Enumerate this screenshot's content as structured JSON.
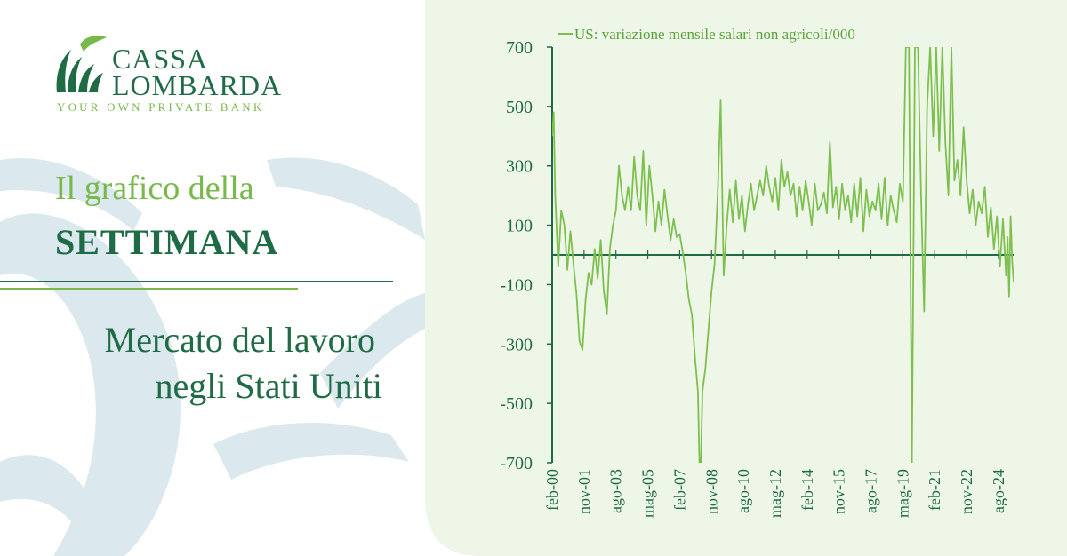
{
  "brand": {
    "name_line1": "CASSA",
    "name_line2": "LOMBARDA",
    "tagline": "YOUR OWN PRIVATE BANK"
  },
  "headline": {
    "line1": "Il grafico della",
    "line2": "SETTIMANA"
  },
  "subtitle": {
    "line1": "Mercato del lavoro",
    "line2": "negli Stati Uniti"
  },
  "colors": {
    "dark_green": "#1f6b45",
    "light_green": "#79b84b",
    "series": "#7dc050",
    "panel_bg": "#eef6e8",
    "decor_blue": "#dbe9ee"
  },
  "chart_data": {
    "type": "line",
    "title": "",
    "xlabel": "",
    "ylabel": "",
    "ylim": [
      -700,
      700
    ],
    "yticks": [
      700,
      500,
      300,
      100,
      -100,
      -300,
      -500,
      -700
    ],
    "ytick_labels": [
      "700",
      "500",
      "300",
      "100",
      "-100",
      "-300",
      "-500",
      "-700"
    ],
    "xtick_labels": [
      "feb-00",
      "nov-01",
      "ago-03",
      "mag-05",
      "feb-07",
      "nov-08",
      "ago-10",
      "mag-12",
      "feb-14",
      "nov-15",
      "ago-17",
      "mag-19",
      "feb-21",
      "nov-22",
      "ago-24"
    ],
    "xtick_months": [
      0,
      21,
      42,
      63,
      84,
      105,
      126,
      147,
      168,
      189,
      210,
      231,
      252,
      273,
      294
    ],
    "x_start": "feb-00",
    "x_end": "mar-25",
    "legend_position": "top",
    "series": [
      {
        "name": "US: variazione mensile salari  non agricoli/000",
        "monthly_anchor_values": [
          {
            "month": 0,
            "value": 400
          },
          {
            "month": 1,
            "value": 480
          },
          {
            "month": 2,
            "value": 200
          },
          {
            "month": 4,
            "value": -40
          },
          {
            "month": 6,
            "value": 150
          },
          {
            "month": 8,
            "value": 100
          },
          {
            "month": 10,
            "value": -50
          },
          {
            "month": 12,
            "value": 80
          },
          {
            "month": 14,
            "value": -30
          },
          {
            "month": 16,
            "value": -130
          },
          {
            "month": 18,
            "value": -290
          },
          {
            "month": 20,
            "value": -320
          },
          {
            "month": 22,
            "value": -150
          },
          {
            "month": 24,
            "value": -60
          },
          {
            "month": 26,
            "value": -100
          },
          {
            "month": 28,
            "value": 20
          },
          {
            "month": 30,
            "value": -80
          },
          {
            "month": 32,
            "value": 50
          },
          {
            "month": 34,
            "value": -120
          },
          {
            "month": 36,
            "value": -200
          },
          {
            "month": 38,
            "value": 20
          },
          {
            "month": 40,
            "value": 100
          },
          {
            "month": 42,
            "value": 150
          },
          {
            "month": 44,
            "value": 300
          },
          {
            "month": 46,
            "value": 200
          },
          {
            "month": 48,
            "value": 150
          },
          {
            "month": 50,
            "value": 230
          },
          {
            "month": 52,
            "value": 150
          },
          {
            "month": 54,
            "value": 330
          },
          {
            "month": 56,
            "value": 200
          },
          {
            "month": 58,
            "value": 150
          },
          {
            "month": 60,
            "value": 350
          },
          {
            "month": 62,
            "value": 100
          },
          {
            "month": 64,
            "value": 300
          },
          {
            "month": 66,
            "value": 200
          },
          {
            "month": 68,
            "value": 80
          },
          {
            "month": 70,
            "value": 180
          },
          {
            "month": 72,
            "value": 100
          },
          {
            "month": 74,
            "value": 220
          },
          {
            "month": 76,
            "value": 130
          },
          {
            "month": 78,
            "value": 50
          },
          {
            "month": 80,
            "value": 120
          },
          {
            "month": 82,
            "value": 60
          },
          {
            "month": 84,
            "value": 70
          },
          {
            "month": 86,
            "value": 10
          },
          {
            "month": 88,
            "value": -60
          },
          {
            "month": 90,
            "value": -150
          },
          {
            "month": 92,
            "value": -200
          },
          {
            "month": 94,
            "value": -340
          },
          {
            "month": 96,
            "value": -460
          },
          {
            "month": 97,
            "value": -700
          },
          {
            "month": 98,
            "value": -700
          },
          {
            "month": 99,
            "value": -460
          },
          {
            "month": 101,
            "value": -380
          },
          {
            "month": 103,
            "value": -250
          },
          {
            "month": 105,
            "value": -120
          },
          {
            "month": 107,
            "value": -30
          },
          {
            "month": 109,
            "value": 200
          },
          {
            "month": 111,
            "value": 520
          },
          {
            "month": 113,
            "value": -70
          },
          {
            "month": 115,
            "value": 100
          },
          {
            "month": 117,
            "value": 220
          },
          {
            "month": 119,
            "value": 110
          },
          {
            "month": 121,
            "value": 250
          },
          {
            "month": 123,
            "value": 120
          },
          {
            "month": 125,
            "value": 200
          },
          {
            "month": 127,
            "value": 80
          },
          {
            "month": 129,
            "value": 170
          },
          {
            "month": 131,
            "value": 240
          },
          {
            "month": 133,
            "value": 150
          },
          {
            "month": 135,
            "value": 200
          },
          {
            "month": 137,
            "value": 250
          },
          {
            "month": 139,
            "value": 200
          },
          {
            "month": 141,
            "value": 300
          },
          {
            "month": 143,
            "value": 230
          },
          {
            "month": 145,
            "value": 180
          },
          {
            "month": 147,
            "value": 260
          },
          {
            "month": 149,
            "value": 150
          },
          {
            "month": 151,
            "value": 320
          },
          {
            "month": 153,
            "value": 230
          },
          {
            "month": 155,
            "value": 280
          },
          {
            "month": 157,
            "value": 200
          },
          {
            "month": 159,
            "value": 240
          },
          {
            "month": 161,
            "value": 130
          },
          {
            "month": 163,
            "value": 230
          },
          {
            "month": 165,
            "value": 150
          },
          {
            "month": 167,
            "value": 250
          },
          {
            "month": 169,
            "value": 180
          },
          {
            "month": 171,
            "value": 100
          },
          {
            "month": 173,
            "value": 240
          },
          {
            "month": 175,
            "value": 150
          },
          {
            "month": 177,
            "value": 170
          },
          {
            "month": 179,
            "value": 210
          },
          {
            "month": 181,
            "value": 140
          },
          {
            "month": 183,
            "value": 380
          },
          {
            "month": 185,
            "value": 160
          },
          {
            "month": 187,
            "value": 230
          },
          {
            "month": 189,
            "value": 120
          },
          {
            "month": 191,
            "value": 240
          },
          {
            "month": 193,
            "value": 150
          },
          {
            "month": 195,
            "value": 200
          },
          {
            "month": 197,
            "value": 110
          },
          {
            "month": 199,
            "value": 240
          },
          {
            "month": 201,
            "value": 130
          },
          {
            "month": 203,
            "value": 260
          },
          {
            "month": 205,
            "value": 80
          },
          {
            "month": 207,
            "value": 220
          },
          {
            "month": 209,
            "value": 130
          },
          {
            "month": 211,
            "value": 180
          },
          {
            "month": 213,
            "value": 150
          },
          {
            "month": 215,
            "value": 240
          },
          {
            "month": 217,
            "value": 120
          },
          {
            "month": 219,
            "value": 260
          },
          {
            "month": 221,
            "value": 100
          },
          {
            "month": 223,
            "value": 200
          },
          {
            "month": 225,
            "value": 150
          },
          {
            "month": 227,
            "value": 110
          },
          {
            "month": 229,
            "value": 240
          },
          {
            "month": 231,
            "value": 180
          },
          {
            "month": 233,
            "value": 700
          },
          {
            "month": 235,
            "value": 700
          },
          {
            "month": 237,
            "value": -700
          },
          {
            "month": 239,
            "value": 700
          },
          {
            "month": 241,
            "value": 700
          },
          {
            "month": 243,
            "value": 200
          },
          {
            "month": 245,
            "value": -190
          },
          {
            "month": 247,
            "value": 500
          },
          {
            "month": 249,
            "value": 700
          },
          {
            "month": 251,
            "value": 400
          },
          {
            "month": 253,
            "value": 700
          },
          {
            "month": 255,
            "value": 350
          },
          {
            "month": 257,
            "value": 700
          },
          {
            "month": 259,
            "value": 380
          },
          {
            "month": 261,
            "value": 200
          },
          {
            "month": 263,
            "value": 700
          },
          {
            "month": 265,
            "value": 250
          },
          {
            "month": 267,
            "value": 320
          },
          {
            "month": 269,
            "value": 200
          },
          {
            "month": 271,
            "value": 430
          },
          {
            "month": 273,
            "value": 250
          },
          {
            "month": 275,
            "value": 140
          },
          {
            "month": 277,
            "value": 220
          },
          {
            "month": 279,
            "value": 100
          },
          {
            "month": 281,
            "value": 180
          },
          {
            "month": 283,
            "value": 140
          },
          {
            "month": 285,
            "value": 230
          },
          {
            "month": 287,
            "value": 60
          },
          {
            "month": 289,
            "value": 160
          },
          {
            "month": 291,
            "value": 20
          },
          {
            "month": 293,
            "value": 130
          },
          {
            "month": 295,
            "value": -40
          },
          {
            "month": 297,
            "value": 120
          },
          {
            "month": 299,
            "value": -70
          },
          {
            "month": 300,
            "value": 60
          },
          {
            "month": 301,
            "value": -140
          },
          {
            "month": 302,
            "value": 130
          },
          {
            "month": 303,
            "value": -20
          },
          {
            "month": 304,
            "value": -90
          }
        ]
      }
    ]
  }
}
